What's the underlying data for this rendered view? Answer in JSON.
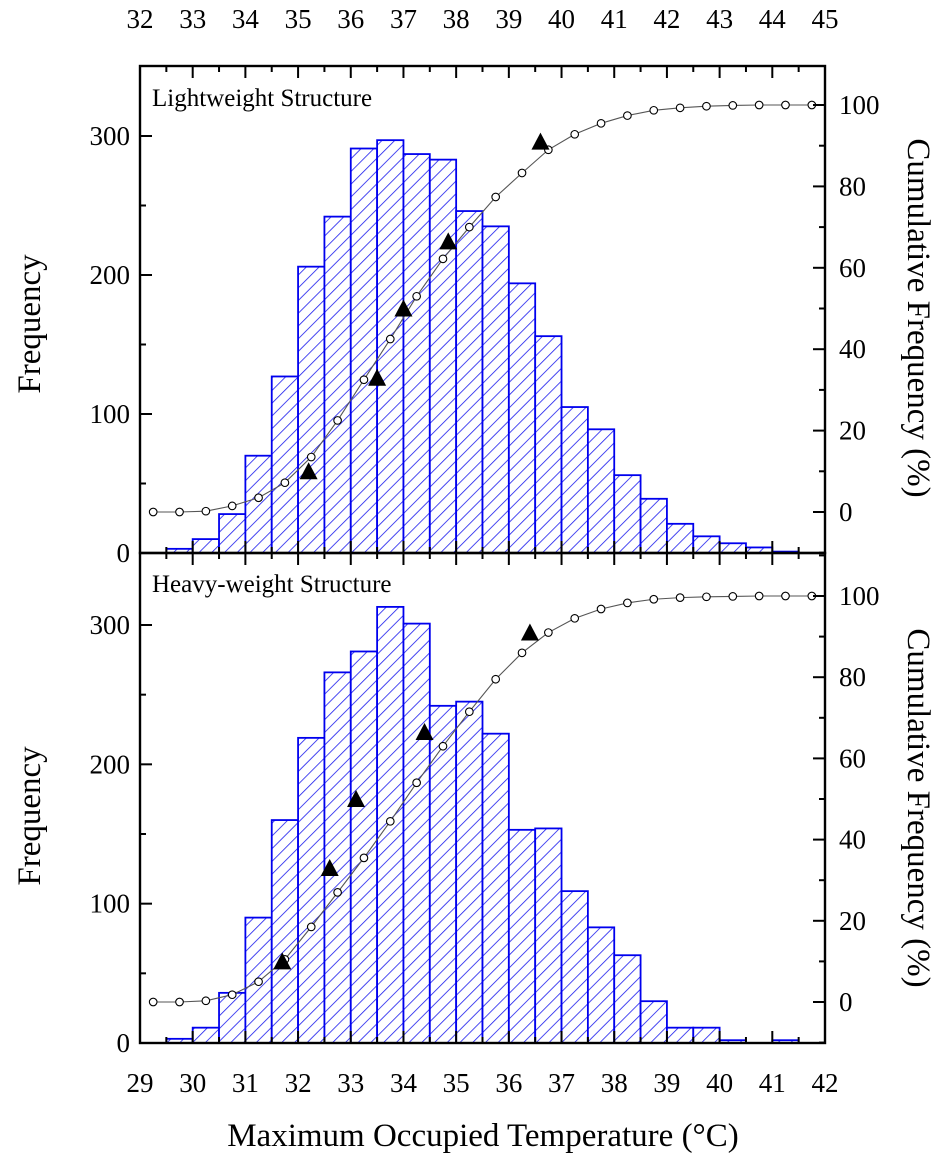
{
  "chart_data": [
    {
      "type": "bar",
      "title": "Lightweight Structure",
      "xlabel": "",
      "ylabel": "Frequency",
      "y2label": "Cumulative Frequency (%)",
      "x_top_axis": {
        "range": [
          32,
          45
        ],
        "tick_labels": [
          "32",
          "33",
          "34",
          "35",
          "36",
          "37",
          "38",
          "39",
          "40",
          "41",
          "42",
          "43",
          "44",
          "45"
        ]
      },
      "ylim": [
        0,
        350
      ],
      "y_ticks": [
        "0",
        "100",
        "200",
        "300"
      ],
      "y2lim": [
        -10,
        110
      ],
      "y2_ticks": [
        "0",
        "20",
        "40",
        "60",
        "80",
        "100"
      ],
      "bin_start": 29.5,
      "bin_width": 0.5,
      "bin_values": [
        3,
        10,
        28,
        70,
        127,
        206,
        242,
        291,
        297,
        287,
        283,
        246,
        235,
        194,
        156,
        105,
        89,
        56,
        39,
        21,
        12,
        7,
        4,
        1
      ],
      "series": [
        {
          "style": "open-circle-line",
          "x": [
            29.25,
            29.75,
            30.25,
            30.75,
            31.25,
            31.75,
            32.25,
            32.75,
            33.25,
            33.75,
            34.25,
            34.75,
            35.25,
            35.75,
            36.25,
            36.75,
            37.25,
            37.75,
            38.25,
            38.75,
            39.25,
            39.75,
            40.25,
            40.75,
            41.25,
            41.75
          ],
          "values": [
            0,
            0,
            0.2,
            1.5,
            3.5,
            7.2,
            13.5,
            22.5,
            32.5,
            42.5,
            53,
            62.2,
            70,
            77.4,
            83.3,
            89,
            92.8,
            95.5,
            97.4,
            98.7,
            99.3,
            99.7,
            99.9,
            100,
            100,
            100
          ]
        },
        {
          "style": "filled-triangle",
          "x": [
            32.2,
            33.5,
            34.0,
            34.85,
            36.6
          ],
          "values": [
            10,
            33,
            50,
            66.5,
            91
          ]
        }
      ],
      "grid": false,
      "hatch_color": "#0000ee"
    },
    {
      "type": "bar",
      "title": "Heavy-weight Structure",
      "xlabel": "Maximum Occupied Temperature (°C)",
      "ylabel": "Frequency",
      "y2label": "Cumulative Frequency (%)",
      "xlim": [
        29,
        42
      ],
      "x_tick_labels": [
        "29",
        "30",
        "31",
        "32",
        "33",
        "34",
        "35",
        "36",
        "37",
        "38",
        "39",
        "40",
        "41",
        "42"
      ],
      "ylim": [
        0,
        350
      ],
      "y_ticks": [
        "0",
        "100",
        "200",
        "300"
      ],
      "y2lim": [
        -10,
        110
      ],
      "y2_ticks": [
        "0",
        "20",
        "40",
        "60",
        "80",
        "100"
      ],
      "bin_start": 29.5,
      "bin_width": 0.5,
      "bin_values": [
        3,
        11,
        36,
        90,
        160,
        219,
        266,
        281,
        313,
        301,
        242,
        245,
        222,
        153,
        154,
        109,
        83,
        63,
        30,
        11,
        11,
        2,
        0,
        2
      ],
      "series": [
        {
          "style": "open-circle-line",
          "x": [
            29.25,
            29.75,
            30.25,
            30.75,
            31.25,
            31.75,
            32.25,
            32.75,
            33.25,
            33.75,
            34.25,
            34.75,
            35.25,
            35.75,
            36.25,
            36.75,
            37.25,
            37.75,
            38.25,
            38.75,
            39.25,
            39.75,
            40.25,
            40.75,
            41.25,
            41.75
          ],
          "values": [
            0,
            0,
            0.3,
            1.8,
            5,
            10.5,
            18.5,
            27,
            35.5,
            44.5,
            54,
            63,
            71.5,
            79.5,
            86,
            91,
            94.5,
            96.8,
            98.3,
            99.2,
            99.6,
            99.8,
            99.9,
            100,
            100,
            100
          ]
        },
        {
          "style": "filled-triangle",
          "x": [
            31.7,
            32.6,
            33.1,
            34.4,
            36.4
          ],
          "values": [
            10,
            33,
            50,
            66.5,
            91
          ]
        }
      ],
      "grid": false,
      "hatch_color": "#0000ee"
    }
  ]
}
